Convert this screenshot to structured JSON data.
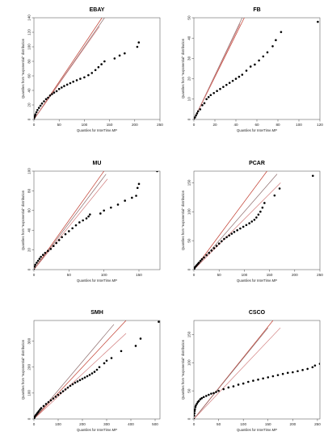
{
  "colors": {
    "points": "#000000",
    "reference_lines": [
      "#c0392b",
      "#8b6a6a",
      "#d07a7a"
    ],
    "frame": "#444444"
  },
  "chart_data": [
    {
      "type": "scatter",
      "title": "EBAY",
      "xlabel": "Quantiles for InterTime.MP",
      "ylabel": "Quantiles from \"exponential\" distribution",
      "xlim": [
        0,
        250
      ],
      "ylim": [
        0,
        140
      ],
      "xticks": [
        0,
        50,
        100,
        150,
        200,
        250
      ],
      "yticks": [
        0,
        20,
        40,
        60,
        80,
        100,
        120,
        140
      ],
      "series": [
        {
          "x": [
            0,
            1,
            2,
            3,
            5,
            7,
            10,
            13,
            16,
            20,
            24,
            28,
            32,
            36,
            40,
            45,
            50,
            55,
            60,
            66,
            72,
            78,
            85,
            92,
            100,
            108,
            115,
            122,
            128,
            134,
            140,
            160,
            170,
            180,
            205,
            208
          ],
          "y": [
            0,
            3,
            5,
            7,
            10,
            13,
            16,
            19,
            22,
            25,
            28,
            30,
            33,
            35,
            37,
            39,
            42,
            44,
            46,
            48,
            50,
            52,
            54,
            56,
            58,
            61,
            64,
            68,
            72,
            76,
            80,
            84,
            88,
            91,
            100,
            106
          ]
        }
      ],
      "reference_lines": [
        [
          0,
          0,
          135,
          140
        ],
        [
          0,
          0,
          140,
          140
        ],
        [
          0,
          0,
          130,
          128
        ]
      ]
    },
    {
      "type": "scatter",
      "title": "FB",
      "xlabel": "Quantiles for InterTime.MP",
      "ylabel": "Quantiles from \"exponential\" distribution",
      "xlim": [
        0,
        120
      ],
      "ylim": [
        0,
        50
      ],
      "xticks": [
        0,
        20,
        40,
        60,
        80,
        100,
        120
      ],
      "yticks": [
        0,
        10,
        20,
        30,
        40,
        50
      ],
      "series": [
        {
          "x": [
            0,
            1,
            2,
            3,
            4,
            6,
            8,
            10,
            12,
            14,
            16,
            19,
            22,
            25,
            28,
            31,
            34,
            37,
            40,
            43,
            46,
            50,
            54,
            58,
            62,
            66,
            70,
            75,
            78,
            83,
            118
          ],
          "y": [
            0,
            1,
            2,
            3,
            4,
            5,
            7,
            8,
            10,
            11,
            12,
            13,
            14,
            15,
            16,
            17,
            18,
            19,
            20,
            21,
            22,
            24,
            26,
            27,
            29,
            31,
            33,
            36,
            39,
            43,
            48
          ]
        }
      ],
      "reference_lines": [
        [
          0,
          0,
          48,
          50
        ],
        [
          0,
          0,
          46,
          50
        ],
        [
          0,
          0,
          44,
          47
        ]
      ]
    },
    {
      "type": "scatter",
      "title": "MU",
      "xlabel": "Quantiles for InterTime.MP",
      "ylabel": "Quantiles from \"exponential\" distribution",
      "xlim": [
        0,
        180
      ],
      "ylim": [
        0,
        100
      ],
      "xticks": [
        0,
        50,
        100,
        150
      ],
      "yticks": [
        0,
        20,
        40,
        60,
        80,
        100
      ],
      "series": [
        {
          "x": [
            0,
            1,
            2,
            4,
            6,
            8,
            10,
            13,
            16,
            20,
            24,
            28,
            32,
            36,
            40,
            45,
            50,
            55,
            60,
            65,
            70,
            75,
            78,
            80,
            95,
            100,
            110,
            120,
            130,
            140,
            146,
            148,
            150,
            176
          ],
          "y": [
            0,
            3,
            5,
            7,
            9,
            11,
            13,
            15,
            17,
            19,
            21,
            24,
            27,
            30,
            33,
            36,
            39,
            42,
            45,
            48,
            50,
            52,
            54,
            56,
            57,
            60,
            63,
            66,
            70,
            73,
            75,
            83,
            87,
            100
          ]
        }
      ],
      "reference_lines": [
        [
          0,
          0,
          100,
          100
        ],
        [
          0,
          0,
          103,
          97
        ],
        [
          0,
          0,
          105,
          92
        ]
      ]
    },
    {
      "type": "scatter",
      "title": "PCAR",
      "xlabel": "Quantiles for InterTime.MP",
      "ylabel": "Quantiles from \"exponential\" distribution",
      "xlim": [
        0,
        250
      ],
      "ylim": [
        0,
        170
      ],
      "xticks": [
        0,
        50,
        100,
        150,
        200,
        250
      ],
      "yticks": [
        0,
        50,
        100,
        150
      ],
      "series": [
        {
          "x": [
            0,
            1,
            2,
            4,
            6,
            8,
            10,
            13,
            16,
            20,
            25,
            30,
            35,
            40,
            45,
            50,
            55,
            60,
            65,
            70,
            75,
            80,
            86,
            92,
            98,
            104,
            110,
            115,
            120,
            124,
            128,
            132,
            136,
            140,
            160,
            170,
            236
          ],
          "y": [
            0,
            2,
            4,
            6,
            8,
            10,
            12,
            15,
            18,
            21,
            25,
            29,
            33,
            37,
            41,
            45,
            49,
            53,
            56,
            59,
            62,
            65,
            68,
            71,
            74,
            77,
            80,
            83,
            86,
            90,
            95,
            100,
            107,
            115,
            128,
            140,
            162
          ]
        }
      ],
      "reference_lines": [
        [
          0,
          0,
          145,
          170
        ],
        [
          0,
          0,
          165,
          165
        ],
        [
          0,
          0,
          172,
          150
        ]
      ]
    },
    {
      "type": "scatter",
      "title": "SMH",
      "xlabel": "Quantiles for InterTime.MP",
      "ylabel": "Quantiles from \"exponential\" distribution",
      "xlim": [
        0,
        520
      ],
      "ylim": [
        0,
        380
      ],
      "xticks": [
        0,
        100,
        200,
        300,
        400,
        500
      ],
      "yticks": [
        0,
        100,
        200,
        300
      ],
      "series": [
        {
          "x": [
            0,
            2,
            4,
            8,
            12,
            16,
            20,
            25,
            30,
            40,
            50,
            60,
            70,
            80,
            90,
            100,
            110,
            120,
            130,
            140,
            150,
            160,
            170,
            180,
            190,
            200,
            210,
            220,
            230,
            240,
            250,
            260,
            270,
            290,
            300,
            320,
            360,
            420,
            440,
            515
          ],
          "y": [
            0,
            5,
            10,
            15,
            20,
            25,
            30,
            36,
            42,
            50,
            58,
            65,
            72,
            79,
            86,
            93,
            100,
            107,
            114,
            121,
            128,
            134,
            140,
            145,
            150,
            155,
            160,
            165,
            170,
            176,
            182,
            190,
            200,
            215,
            225,
            235,
            262,
            282,
            310,
            375
          ]
        }
      ],
      "reference_lines": [
        [
          0,
          0,
          380,
          380
        ],
        [
          0,
          0,
          330,
          365
        ],
        [
          0,
          0,
          380,
          330
        ]
      ]
    },
    {
      "type": "scatter",
      "title": "CSCO",
      "xlabel": "Quantiles for InterTime.MP",
      "ylabel": "Quantiles from \"exponential\" distribution",
      "xlim": [
        0,
        255
      ],
      "ylim": [
        0,
        175
      ],
      "xticks": [
        0,
        50,
        100,
        150,
        200,
        250
      ],
      "yticks": [
        0,
        50,
        100,
        150
      ],
      "series": [
        {
          "x": [
            0,
            0.5,
            1,
            1.5,
            2,
            3,
            4,
            6,
            8,
            10,
            13,
            16,
            20,
            25,
            30,
            35,
            40,
            45,
            50,
            60,
            70,
            80,
            90,
            100,
            110,
            120,
            130,
            140,
            150,
            160,
            170,
            180,
            190,
            200,
            210,
            220,
            230,
            240,
            245,
            255
          ],
          "y": [
            0,
            6,
            10,
            14,
            17,
            21,
            24,
            27,
            30,
            32,
            35,
            37,
            39,
            41,
            43,
            45,
            46,
            48,
            50,
            53,
            56,
            58,
            61,
            63,
            66,
            68,
            70,
            72,
            74,
            76,
            78,
            80,
            82,
            83,
            85,
            87,
            89,
            92,
            95,
            98
          ]
        }
      ],
      "reference_lines": [
        [
          0,
          0,
          160,
          175
        ],
        [
          0,
          0,
          150,
          162
        ],
        [
          0,
          0,
          175,
          162
        ]
      ]
    }
  ]
}
